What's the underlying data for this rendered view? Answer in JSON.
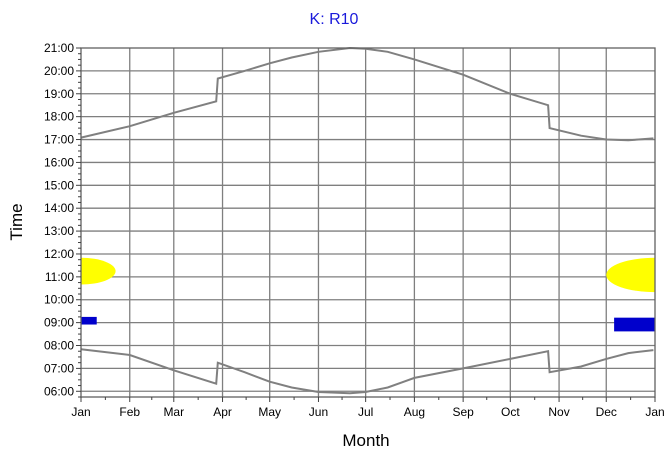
{
  "chart_data": {
    "type": "line",
    "title": "K: R10",
    "xlabel": "Month",
    "ylabel": "Time",
    "x_tick_labels": [
      "Jan",
      "Feb",
      "Mar",
      "Apr",
      "May",
      "Jun",
      "Jul",
      "Aug",
      "Sep",
      "Oct",
      "Nov",
      "Dec",
      "Jan"
    ],
    "y_tick_labels": [
      "06:00",
      "07:00",
      "08:00",
      "09:00",
      "10:00",
      "11:00",
      "12:00",
      "13:00",
      "14:00",
      "15:00",
      "16:00",
      "17:00",
      "18:00",
      "19:00",
      "20:00",
      "21:00"
    ],
    "xlim": [
      "Jan",
      "Jan"
    ],
    "ylim": [
      "05:45",
      "21:00"
    ],
    "grid": true,
    "series": [
      {
        "color": "#808080",
        "points": [
          [
            "Jan 1",
            "17:05"
          ],
          [
            "Feb 1",
            "17:35"
          ],
          [
            "Mar 1",
            "18:10"
          ],
          [
            "Mar 28",
            "18:40"
          ],
          [
            "Mar 29",
            "19:40"
          ],
          [
            "Apr 15",
            "20:00"
          ],
          [
            "May 1",
            "20:20"
          ],
          [
            "May 15",
            "20:35"
          ],
          [
            "Jun 1",
            "20:50"
          ],
          [
            "Jun 21",
            "21:00"
          ],
          [
            "Jul 1",
            "20:58"
          ],
          [
            "Jul 15",
            "20:50"
          ],
          [
            "Aug 1",
            "20:30"
          ],
          [
            "Sep 1",
            "19:50"
          ],
          [
            "Oct 1",
            "19:00"
          ],
          [
            "Oct 25",
            "18:30"
          ],
          [
            "Oct 26",
            "17:30"
          ],
          [
            "Nov 15",
            "17:10"
          ],
          [
            "Dec 1",
            "17:00"
          ],
          [
            "Dec 15",
            "16:58"
          ],
          [
            "Dec 31",
            "17:03"
          ]
        ]
      },
      {
        "color": "#808080",
        "points": [
          [
            "Jan 1",
            "07:50"
          ],
          [
            "Feb 1",
            "07:35"
          ],
          [
            "Mar 1",
            "06:55"
          ],
          [
            "Mar 28",
            "06:20"
          ],
          [
            "Mar 29",
            "07:15"
          ],
          [
            "Apr 15",
            "06:50"
          ],
          [
            "May 1",
            "06:25"
          ],
          [
            "May 15",
            "06:10"
          ],
          [
            "Jun 1",
            "05:58"
          ],
          [
            "Jun 21",
            "05:55"
          ],
          [
            "Jul 1",
            "05:58"
          ],
          [
            "Jul 15",
            "06:10"
          ],
          [
            "Aug 1",
            "06:35"
          ],
          [
            "Sep 1",
            "07:00"
          ],
          [
            "Oct 1",
            "07:25"
          ],
          [
            "Oct 25",
            "07:45"
          ],
          [
            "Oct 26",
            "06:50"
          ],
          [
            "Nov 15",
            "07:05"
          ],
          [
            "Dec 1",
            "07:25"
          ],
          [
            "Dec 15",
            "07:40"
          ],
          [
            "Dec 31",
            "07:48"
          ]
        ]
      }
    ],
    "regions": [
      {
        "color": "#ffff00",
        "start": "Jan 1",
        "end": "Jan 22",
        "center": "11:15",
        "spread": "00:35"
      },
      {
        "color": "#ffff00",
        "start": "Dec 1",
        "end": "Dec 31",
        "center": "11:05",
        "spread": "00:45"
      },
      {
        "color": "#0000cc",
        "start": "Jan 1",
        "end": "Jan 10",
        "center": "09:05",
        "spread": "00:10"
      },
      {
        "color": "#0000cc",
        "start": "Dec 6",
        "end": "Dec 31",
        "center": "08:55",
        "spread": "00:18"
      }
    ]
  }
}
